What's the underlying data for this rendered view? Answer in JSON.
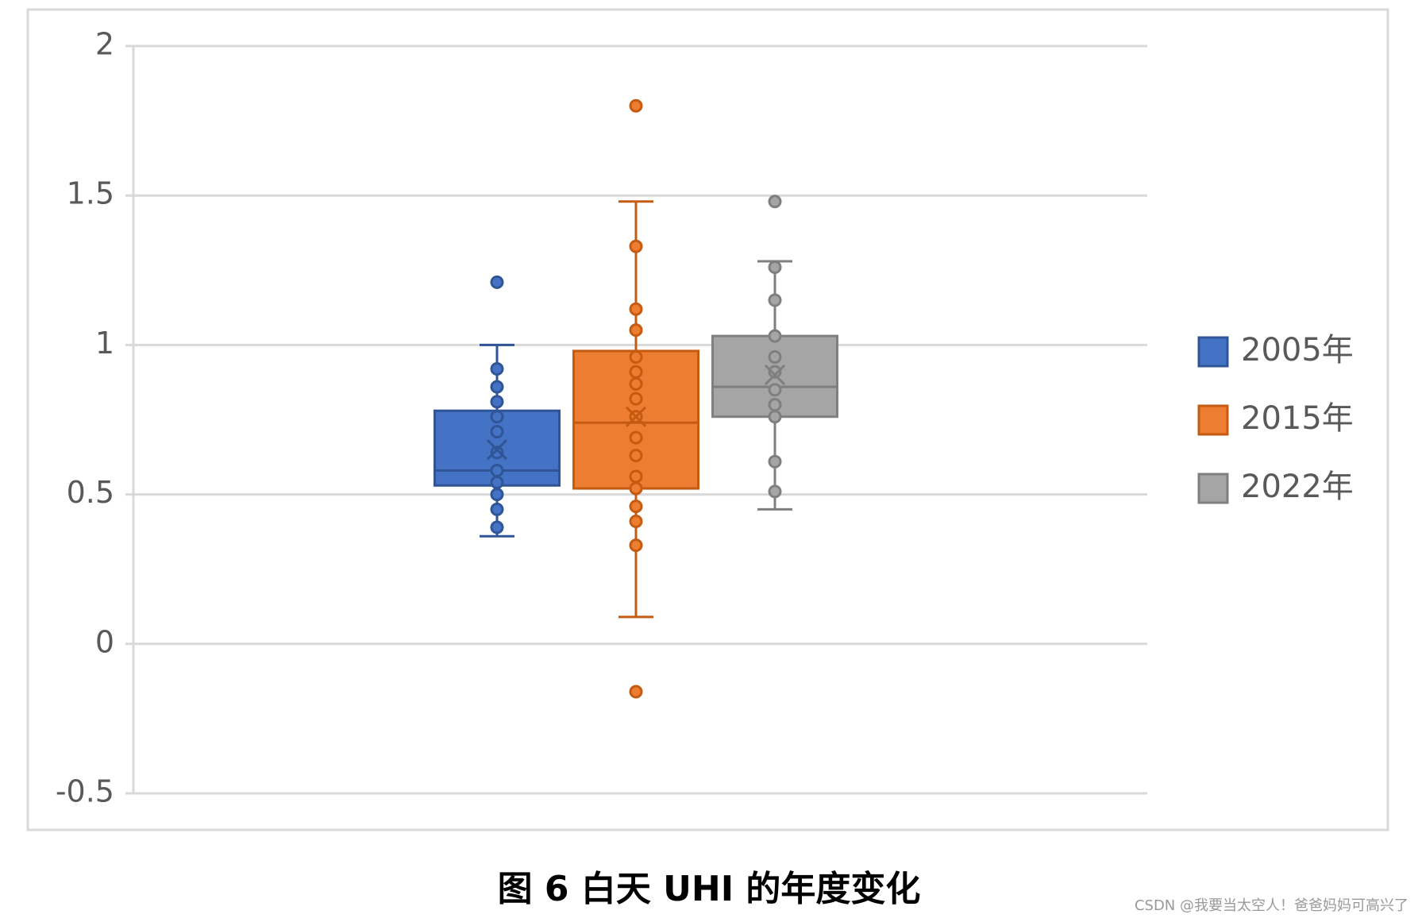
{
  "chart_data": {
    "type": "box",
    "caption": "图 6 白天 UHI 的年度变化",
    "watermark": "CSDN @我要当太空人！爸爸妈妈可高兴了",
    "ylim": [
      -0.5,
      2
    ],
    "yticks": [
      -0.5,
      0,
      0.5,
      1,
      1.5,
      2
    ],
    "grid": true,
    "legend": "right",
    "series": [
      {
        "name": "2005年",
        "color": "#4472c4",
        "edge": "#2f5597",
        "min": 0.36,
        "q1": 0.53,
        "median": 0.58,
        "q3": 0.78,
        "max": 1.0,
        "mean": 0.65,
        "points": [
          0.92,
          0.86,
          0.81,
          0.76,
          0.71,
          0.64,
          0.58,
          0.54,
          0.5,
          0.45,
          0.39
        ],
        "outliers": [
          1.21
        ]
      },
      {
        "name": "2015年",
        "color": "#ed7d31",
        "edge": "#c55a11",
        "min": 0.09,
        "q1": 0.52,
        "median": 0.74,
        "q3": 0.98,
        "max": 1.48,
        "mean": 0.76,
        "points": [
          1.33,
          1.12,
          1.05,
          0.96,
          0.91,
          0.87,
          0.82,
          0.76,
          0.69,
          0.63,
          0.56,
          0.52,
          0.46,
          0.41,
          0.33
        ],
        "outliers": [
          1.8,
          -0.16
        ]
      },
      {
        "name": "2022年",
        "color": "#a5a5a5",
        "edge": "#7f7f7f",
        "min": 0.45,
        "q1": 0.76,
        "median": 0.86,
        "q3": 1.03,
        "max": 1.28,
        "mean": 0.9,
        "points": [
          1.26,
          1.15,
          1.03,
          0.96,
          0.91,
          0.85,
          0.8,
          0.76,
          0.61,
          0.51
        ],
        "outliers": [
          1.48
        ]
      }
    ]
  }
}
